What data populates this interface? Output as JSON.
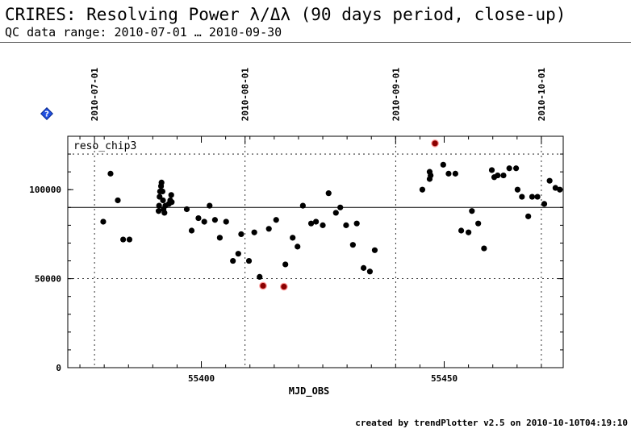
{
  "header": {
    "title": "CRIRES: Resolving Power λ/Δλ (90 days period, close-up)",
    "subtitle": "QC data range: 2010-07-01 … 2010-09-30"
  },
  "help_icon": {
    "name": "help-diamond-icon",
    "glyph": "?",
    "color": "#1f4fe0"
  },
  "footer": {
    "text": "created by trendPlotter v2.5 on 2010-10-10T04:19:10"
  },
  "chart_data": {
    "type": "scatter",
    "panel_label": "reso_chip3",
    "xlabel": "MJD_OBS",
    "ylabel": "",
    "xlim": [
      55372.5,
      55474.5
    ],
    "ylim": [
      0,
      130000
    ],
    "x_ticks": [
      55400,
      55450
    ],
    "y_ticks": [
      0,
      50000,
      100000
    ],
    "y_tick_labels": [
      "0",
      "50000",
      "100000"
    ],
    "x_tick_labels": [
      "55400",
      "55450"
    ],
    "date_markers": [
      {
        "label": "2010-07-01",
        "x": 55378
      },
      {
        "label": "2010-08-01",
        "x": 55409
      },
      {
        "label": "2010-09-01",
        "x": 55440
      },
      {
        "label": "2010-10-01",
        "x": 55470
      }
    ],
    "reference_lines": {
      "mean": 90000,
      "upper_threshold": 120000
    },
    "grid": false,
    "colors": {
      "points": "#000000",
      "outliers": "#8b0000",
      "outlier_outline": "#ff9999",
      "help_icon": "#1f4fe0"
    },
    "series": [
      {
        "name": "",
        "points": [
          [
            55379.8,
            82000
          ],
          [
            55381.3,
            109000
          ],
          [
            55382.8,
            94000
          ],
          [
            55383.9,
            72000
          ],
          [
            55385.2,
            72000
          ],
          [
            55391.2,
            88000
          ],
          [
            55391.3,
            91000
          ],
          [
            55391.4,
            96000
          ],
          [
            55391.5,
            99000
          ],
          [
            55391.7,
            102000
          ],
          [
            55391.8,
            104000
          ],
          [
            55392.0,
            99000
          ],
          [
            55392.1,
            94000
          ],
          [
            55392.2,
            89000
          ],
          [
            55392.4,
            87000
          ],
          [
            55392.6,
            91000
          ],
          [
            55393.3,
            92000
          ],
          [
            55393.6,
            94000
          ],
          [
            55393.8,
            97000
          ],
          [
            55393.9,
            93000
          ],
          [
            55397.0,
            89000
          ],
          [
            55398.0,
            77000
          ],
          [
            55399.4,
            84000
          ],
          [
            55400.6,
            82000
          ],
          [
            55401.7,
            91000
          ],
          [
            55402.8,
            83000
          ],
          [
            55403.8,
            73000
          ],
          [
            55405.1,
            82000
          ],
          [
            55406.5,
            60000
          ],
          [
            55407.6,
            64000
          ],
          [
            55408.2,
            75000
          ],
          [
            55409.8,
            60000
          ],
          [
            55410.9,
            76000
          ],
          [
            55412.0,
            51000
          ],
          [
            55413.9,
            78000
          ],
          [
            55415.4,
            83000
          ],
          [
            55417.3,
            58000
          ],
          [
            55418.8,
            73000
          ],
          [
            55419.8,
            68000
          ],
          [
            55420.9,
            91000
          ],
          [
            55422.6,
            81000
          ],
          [
            55423.6,
            82000
          ],
          [
            55425.0,
            80000
          ],
          [
            55426.2,
            98000
          ],
          [
            55427.7,
            87000
          ],
          [
            55428.6,
            90000
          ],
          [
            55429.8,
            80000
          ],
          [
            55431.2,
            69000
          ],
          [
            55432.0,
            81000
          ],
          [
            55433.4,
            56000
          ],
          [
            55434.7,
            54000
          ],
          [
            55435.7,
            66000
          ],
          [
            55445.5,
            100000
          ],
          [
            55447.0,
            106000
          ],
          [
            55447.0,
            110000
          ],
          [
            55447.2,
            108000
          ],
          [
            55449.8,
            114000
          ],
          [
            55450.9,
            109000
          ],
          [
            55452.3,
            109000
          ],
          [
            55453.5,
            77000
          ],
          [
            55455.0,
            76000
          ],
          [
            55455.7,
            88000
          ],
          [
            55457.0,
            81000
          ],
          [
            55458.2,
            67000
          ],
          [
            55459.8,
            111000
          ],
          [
            55460.3,
            107000
          ],
          [
            55461.0,
            108000
          ],
          [
            55462.2,
            108000
          ],
          [
            55463.4,
            112000
          ],
          [
            55464.8,
            112000
          ],
          [
            55465.1,
            100000
          ],
          [
            55466.0,
            96000
          ],
          [
            55467.3,
            85000
          ],
          [
            55468.1,
            96000
          ],
          [
            55469.2,
            96000
          ],
          [
            55470.6,
            92000
          ],
          [
            55471.7,
            105000
          ],
          [
            55472.9,
            101000
          ],
          [
            55473.8,
            100000
          ],
          [
            55474.9,
            91000
          ]
        ]
      },
      {
        "name": "",
        "outliers": true,
        "points": [
          [
            55412.7,
            46000
          ],
          [
            55417.0,
            45500
          ],
          [
            55448.1,
            126000
          ]
        ]
      }
    ]
  }
}
